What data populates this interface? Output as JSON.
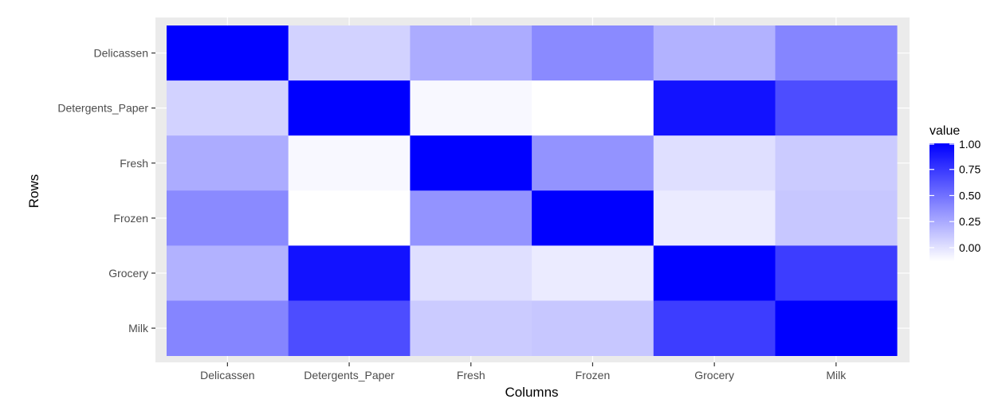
{
  "chart_data": {
    "type": "heatmap",
    "xlabel": "Columns",
    "ylabel": "Rows",
    "x_categories": [
      "Delicassen",
      "Detergents_Paper",
      "Fresh",
      "Frozen",
      "Grocery",
      "Milk"
    ],
    "y_categories": [
      "Delicassen",
      "Detergents_Paper",
      "Fresh",
      "Frozen",
      "Grocery",
      "Milk"
    ],
    "values": [
      [
        1.0,
        0.07,
        0.24,
        0.39,
        0.21,
        0.41
      ],
      [
        0.07,
        1.0,
        -0.1,
        -0.13,
        0.92,
        0.66
      ],
      [
        0.24,
        -0.1,
        1.0,
        0.35,
        0.01,
        0.1
      ],
      [
        0.39,
        -0.13,
        0.35,
        1.0,
        -0.04,
        0.12
      ],
      [
        0.21,
        0.92,
        0.01,
        -0.04,
        1.0,
        0.73
      ],
      [
        0.41,
        0.66,
        0.1,
        0.12,
        0.73,
        1.0
      ]
    ],
    "legend": {
      "title": "value",
      "ticks": [
        1.0,
        0.75,
        0.5,
        0.25,
        0.0
      ],
      "tick_labels": [
        "1.00",
        "0.75",
        "0.50",
        "0.25",
        "0.00"
      ],
      "placement": "right",
      "range": [
        -0.13,
        1.0
      ]
    },
    "color_low": "#ffffff",
    "color_high": "#0000ff",
    "panel_background": "#ebebeb",
    "grid": true
  }
}
